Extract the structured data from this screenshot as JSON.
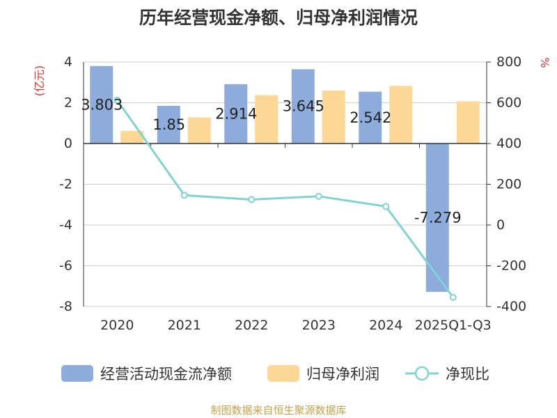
{
  "chart_data": {
    "type": "bar",
    "title": "历年经营现金净额、归母净利润情况",
    "categories": [
      "2020",
      "2021",
      "2022",
      "2023",
      "2024",
      "2025Q1-Q3"
    ],
    "ylabel_left": "(亿元)",
    "ylabel_right": "%",
    "ylim_left": [
      -8,
      4
    ],
    "yticks_left": [
      4,
      2,
      0,
      -2,
      -4,
      -6,
      -8
    ],
    "ylim_right": [
      -400,
      800
    ],
    "yticks_right": [
      800,
      600,
      400,
      200,
      0,
      -200,
      -400
    ],
    "grid": true,
    "legend_position": "bottom",
    "series": [
      {
        "name": "经营活动现金流净额",
        "type": "bar",
        "axis": "left",
        "color": "#8eacdb",
        "values": [
          3.803,
          1.85,
          2.914,
          3.645,
          2.542,
          -7.279
        ],
        "labels": [
          "3.803",
          "1.85",
          "2.914",
          "3.645",
          "2.542",
          "-7.279"
        ]
      },
      {
        "name": "归母净利润",
        "type": "bar",
        "axis": "left",
        "color": "#fdd796",
        "values": [
          0.62,
          1.28,
          2.37,
          2.6,
          2.83,
          2.07
        ]
      },
      {
        "name": "净现比",
        "type": "line",
        "axis": "right",
        "color": "#7fd3d3",
        "values": [
          613,
          146,
          125,
          141,
          91,
          -355
        ]
      }
    ]
  },
  "source": "制图数据来自恒生聚源数据库"
}
